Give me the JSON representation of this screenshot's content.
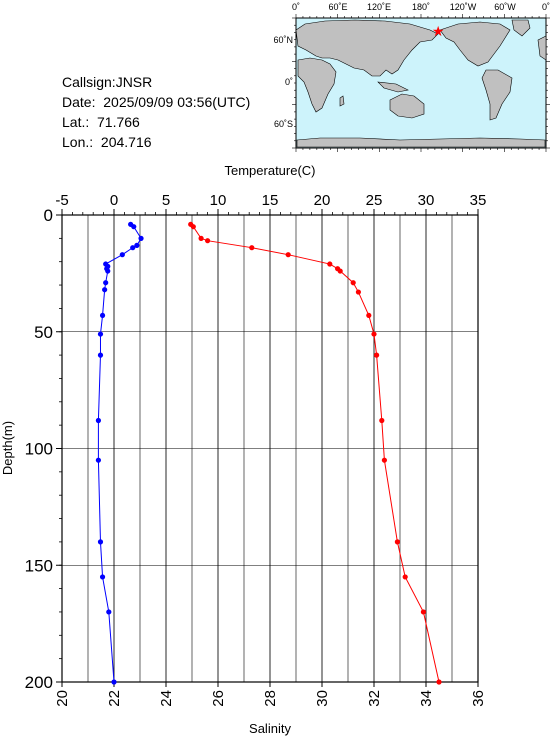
{
  "header": {
    "callsign": "Callsign:JNSR",
    "date": "Date:  2025/09/09 03:56(UTC)",
    "lat": "Lat.:  71.766",
    "lon": "Lon.:  204.716"
  },
  "map": {
    "top_labels": [
      "0˚",
      "60˚E",
      "120˚E",
      "180˚",
      "120˚W",
      "60˚W",
      "0˚"
    ],
    "left_labels": [
      "60˚N",
      "0˚",
      "60˚S"
    ],
    "station_marker": {
      "lat": 71.766,
      "lon": 204.716,
      "color": "#ff0000"
    },
    "ocean_color": "#cdf3fb",
    "land_color": "#c0c0c0"
  },
  "chart_data": {
    "type": "line",
    "top_axis": {
      "label": "Temperature(C)",
      "range": [
        -5,
        35
      ],
      "ticks": [
        "-5",
        "0",
        "5",
        "10",
        "15",
        "20",
        "25",
        "30",
        "35"
      ]
    },
    "bottom_axis": {
      "label": "Salinity",
      "range": [
        20,
        36
      ],
      "ticks": [
        "20",
        "22",
        "24",
        "26",
        "28",
        "30",
        "32",
        "34",
        "36"
      ]
    },
    "y_axis": {
      "label": "Depth(m)",
      "range": [
        0,
        200
      ],
      "inverted": true,
      "ticks": [
        "0",
        "50",
        "100",
        "150",
        "200"
      ]
    },
    "grid": true,
    "series": [
      {
        "axis": "temperature",
        "color": "#0000ff",
        "points": [
          [
            1.6,
            4
          ],
          [
            1.9,
            5
          ],
          [
            2.6,
            10
          ],
          [
            2.2,
            13
          ],
          [
            1.8,
            14
          ],
          [
            0.8,
            17
          ],
          [
            -0.8,
            21
          ],
          [
            -0.6,
            22
          ],
          [
            -0.7,
            23
          ],
          [
            -0.6,
            24
          ],
          [
            -0.8,
            29
          ],
          [
            -0.9,
            32
          ],
          [
            -1.1,
            43
          ],
          [
            -1.3,
            51
          ],
          [
            -1.3,
            60
          ],
          [
            -1.5,
            88
          ],
          [
            -1.5,
            105
          ],
          [
            -1.3,
            140
          ],
          [
            -1.1,
            155
          ],
          [
            -0.5,
            170
          ],
          [
            0,
            200
          ]
        ]
      },
      {
        "axis": "salinity",
        "color": "#ff0000",
        "points": [
          [
            24.95,
            4
          ],
          [
            25.05,
            5
          ],
          [
            25.35,
            10
          ],
          [
            25.6,
            11
          ],
          [
            27.3,
            14
          ],
          [
            28.7,
            17
          ],
          [
            30.3,
            21
          ],
          [
            30.6,
            23
          ],
          [
            30.7,
            24
          ],
          [
            31.2,
            29
          ],
          [
            31.4,
            33
          ],
          [
            31.8,
            43
          ],
          [
            32.0,
            51
          ],
          [
            32.1,
            60
          ],
          [
            32.3,
            88
          ],
          [
            32.4,
            105
          ],
          [
            32.9,
            140
          ],
          [
            33.2,
            155
          ],
          [
            33.9,
            170
          ],
          [
            34.5,
            200
          ]
        ]
      }
    ]
  }
}
